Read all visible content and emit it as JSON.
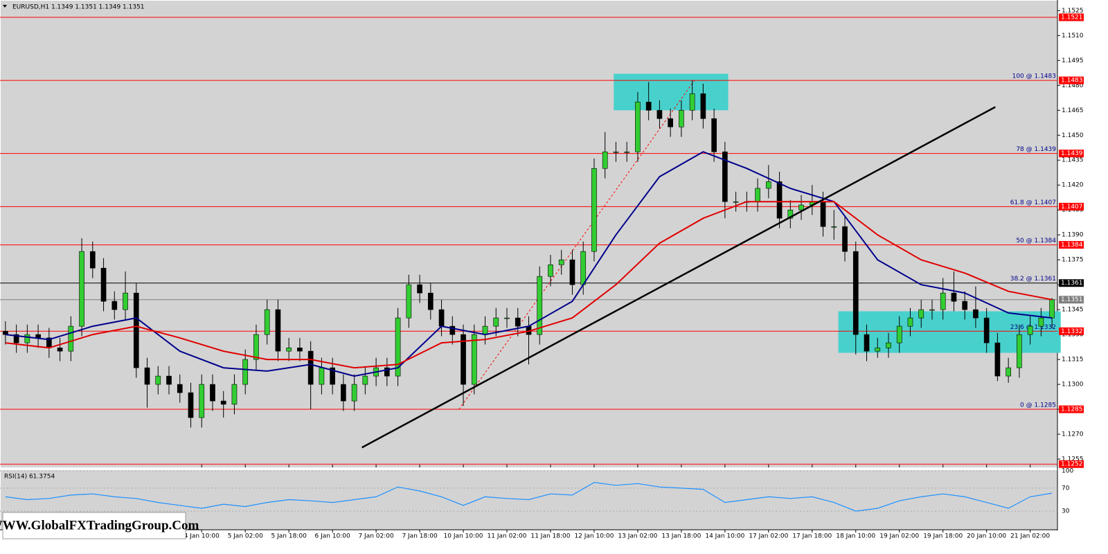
{
  "chart_data": {
    "type": "candlestick",
    "title": "EURUSD,H1  1.1349 1.1351 1.1349 1.1351",
    "watermark": "WWW.GlobalFXTradingGroup.Com",
    "colors": {
      "background": "#d3d3d3",
      "bull": "#32cd32",
      "bear": "#000000",
      "level": "#ff0000"
    },
    "open": [
      1.1332,
      1.133,
      1.1325,
      1.133,
      1.1328,
      1.1322,
      1.132,
      1.1335,
      1.138,
      1.137,
      1.135,
      1.1345,
      1.1355,
      1.131,
      1.13,
      1.1305,
      1.13,
      1.1295,
      1.128,
      1.13,
      1.129,
      1.1288,
      1.13,
      1.1315,
      1.133,
      1.1345,
      1.132,
      1.1322,
      1.132,
      1.13,
      1.131,
      1.13,
      1.129,
      1.13,
      1.1305,
      1.131,
      1.1305,
      1.134,
      1.136,
      1.1355,
      1.1345,
      1.1335,
      1.133,
      1.13,
      1.133,
      1.1335,
      1.134,
      1.134,
      1.1335,
      1.133,
      1.1365,
      1.1372,
      1.1375,
      1.136,
      1.138,
      1.143,
      1.144,
      1.144,
      1.144,
      1.147,
      1.1465,
      1.146,
      1.1455,
      1.1465,
      1.1475,
      1.146,
      1.144,
      1.141,
      1.141,
      1.141,
      1.1418,
      1.1422,
      1.14,
      1.1405,
      1.1408,
      1.141,
      1.1395,
      1.1395,
      1.138,
      1.133,
      1.132,
      1.1322,
      1.1325,
      1.1335,
      1.134,
      1.1345,
      1.1345,
      1.1355,
      1.135,
      1.1345,
      1.134,
      1.1325,
      1.1305,
      1.131,
      1.133,
      1.1335,
      1.134
    ],
    "high": [
      1.1338,
      1.1336,
      1.1336,
      1.1336,
      1.1334,
      1.1328,
      1.1341,
      1.1388,
      1.1386,
      1.1376,
      1.1356,
      1.1368,
      1.1361,
      1.1316,
      1.1311,
      1.1311,
      1.1306,
      1.1301,
      1.1306,
      1.1306,
      1.1296,
      1.1306,
      1.1321,
      1.1336,
      1.1351,
      1.1351,
      1.1328,
      1.1328,
      1.1326,
      1.1316,
      1.1316,
      1.1306,
      1.1306,
      1.1311,
      1.1316,
      1.1316,
      1.1346,
      1.1366,
      1.1366,
      1.1361,
      1.1351,
      1.1341,
      1.1336,
      1.1336,
      1.1341,
      1.1346,
      1.1346,
      1.1346,
      1.1341,
      1.1371,
      1.1378,
      1.1381,
      1.1381,
      1.1386,
      1.1436,
      1.1452,
      1.1446,
      1.1446,
      1.1476,
      1.1482,
      1.1471,
      1.1466,
      1.1471,
      1.1483,
      1.1481,
      1.1466,
      1.1446,
      1.1416,
      1.1416,
      1.1424,
      1.1432,
      1.1428,
      1.1411,
      1.1414,
      1.142,
      1.1416,
      1.1405,
      1.1401,
      1.1386,
      1.1336,
      1.1328,
      1.1331,
      1.1341,
      1.1346,
      1.1351,
      1.1351,
      1.1364,
      1.1368,
      1.1356,
      1.1359,
      1.1346,
      1.1331,
      1.1316,
      1.1336,
      1.1341,
      1.1346,
      1.1352
    ],
    "low": [
      1.1324,
      1.1319,
      1.1319,
      1.1322,
      1.1316,
      1.1314,
      1.1314,
      1.1329,
      1.1364,
      1.1344,
      1.1339,
      1.1339,
      1.1304,
      1.1286,
      1.1294,
      1.1294,
      1.1289,
      1.1274,
      1.1274,
      1.1284,
      1.128,
      1.1282,
      1.1294,
      1.1309,
      1.1324,
      1.1314,
      1.1314,
      1.1314,
      1.1285,
      1.1294,
      1.1294,
      1.1284,
      1.1284,
      1.1294,
      1.1299,
      1.1299,
      1.1299,
      1.1334,
      1.1349,
      1.1339,
      1.1329,
      1.1324,
      1.1287,
      1.1294,
      1.1324,
      1.1329,
      1.1334,
      1.1329,
      1.1312,
      1.1324,
      1.1359,
      1.1366,
      1.1354,
      1.1354,
      1.1374,
      1.1424,
      1.1434,
      1.1434,
      1.1434,
      1.1459,
      1.1454,
      1.1449,
      1.1449,
      1.1459,
      1.1454,
      1.1434,
      1.14,
      1.1404,
      1.1404,
      1.1404,
      1.1412,
      1.1394,
      1.1394,
      1.1399,
      1.1402,
      1.1389,
      1.1387,
      1.1374,
      1.1318,
      1.1314,
      1.1316,
      1.1316,
      1.1319,
      1.1329,
      1.1334,
      1.1339,
      1.1339,
      1.1344,
      1.1339,
      1.1334,
      1.1319,
      1.1302,
      1.1301,
      1.1304,
      1.1324,
      1.1329,
      1.1334
    ],
    "close": [
      1.133,
      1.1325,
      1.133,
      1.1328,
      1.1322,
      1.132,
      1.1335,
      1.138,
      1.137,
      1.135,
      1.1345,
      1.1355,
      1.131,
      1.13,
      1.1305,
      1.13,
      1.1295,
      1.128,
      1.13,
      1.129,
      1.1288,
      1.13,
      1.1315,
      1.133,
      1.1345,
      1.132,
      1.1322,
      1.132,
      1.13,
      1.131,
      1.13,
      1.129,
      1.13,
      1.1305,
      1.131,
      1.1305,
      1.134,
      1.136,
      1.1355,
      1.1345,
      1.1335,
      1.133,
      1.13,
      1.133,
      1.1335,
      1.134,
      1.134,
      1.1335,
      1.133,
      1.1365,
      1.1372,
      1.1375,
      1.136,
      1.138,
      1.143,
      1.144,
      1.144,
      1.144,
      1.147,
      1.1465,
      1.146,
      1.1455,
      1.1465,
      1.1475,
      1.146,
      1.144,
      1.141,
      1.141,
      1.141,
      1.1418,
      1.1422,
      1.14,
      1.1405,
      1.1408,
      1.141,
      1.1395,
      1.1395,
      1.138,
      1.133,
      1.132,
      1.1322,
      1.1325,
      1.1335,
      1.134,
      1.1345,
      1.1345,
      1.1355,
      1.135,
      1.1345,
      1.134,
      1.1325,
      1.1305,
      1.131,
      1.133,
      1.1335,
      1.134,
      1.1351
    ],
    "series": [
      {
        "color": "#00008b",
        "x": [
          0,
          4,
          8,
          12,
          16,
          20,
          24,
          28,
          32,
          36,
          40,
          44,
          48,
          52,
          56,
          60,
          64,
          68,
          72,
          76,
          80,
          84,
          88,
          92,
          96
        ],
        "values": [
          1.133,
          1.1327,
          1.1335,
          1.134,
          1.132,
          1.131,
          1.1308,
          1.1312,
          1.1305,
          1.131,
          1.1335,
          1.133,
          1.1335,
          1.135,
          1.139,
          1.1425,
          1.144,
          1.143,
          1.1418,
          1.141,
          1.1375,
          1.136,
          1.1355,
          1.1343,
          1.134
        ]
      },
      {
        "color": "#e00000",
        "x": [
          0,
          4,
          8,
          12,
          16,
          20,
          24,
          28,
          32,
          36,
          40,
          44,
          48,
          52,
          56,
          60,
          64,
          68,
          72,
          76,
          80,
          84,
          88,
          92,
          96
        ],
        "values": [
          1.1325,
          1.1322,
          1.133,
          1.1335,
          1.1328,
          1.132,
          1.1315,
          1.1315,
          1.131,
          1.1312,
          1.1325,
          1.1327,
          1.1332,
          1.134,
          1.136,
          1.1385,
          1.14,
          1.141,
          1.141,
          1.141,
          1.139,
          1.1375,
          1.1367,
          1.1356,
          1.1351
        ]
      }
    ],
    "xlim": [
      -0.5,
      96.5
    ],
    "ylim": [
      1.125,
      1.15314
    ],
    "xticks": [
      {
        "value": 18,
        "label": "4 Jan 10:00"
      },
      {
        "value": 22,
        "label": "5 Jan 02:00"
      },
      {
        "value": 26,
        "label": "5 Jan 18:00"
      },
      {
        "value": 30,
        "label": "6 Jan 10:00"
      },
      {
        "value": 34,
        "label": "7 Jan 02:00"
      },
      {
        "value": 38,
        "label": "7 Jan 18:00"
      },
      {
        "value": 42,
        "label": "10 Jan 10:00"
      },
      {
        "value": 46,
        "label": "11 Jan 02:00"
      },
      {
        "value": 50,
        "label": "11 Jan 18:00"
      },
      {
        "value": 54,
        "label": "12 Jan 10:00"
      },
      {
        "value": 58,
        "label": "13 Jan 02:00"
      },
      {
        "value": 62,
        "label": "13 Jan 18:00"
      },
      {
        "value": 66,
        "label": "14 Jan 10:00"
      },
      {
        "value": 70,
        "label": "17 Jan 02:00"
      },
      {
        "value": 74,
        "label": "17 Jan 18:00"
      },
      {
        "value": 78,
        "label": "18 Jan 10:00"
      },
      {
        "value": 82,
        "label": "19 Jan 02:00"
      },
      {
        "value": 86,
        "label": "19 Jan 18:00"
      },
      {
        "value": 90,
        "label": "20 Jan 10:00"
      },
      {
        "value": 94,
        "label": "21 Jan 02:00"
      }
    ],
    "yticks": [
      1.1525,
      {
        "value": 1.151,
        "label": "1.1510"
      },
      1.1495,
      {
        "value": 1.148,
        "label": "1.1480"
      },
      1.1465,
      {
        "value": 1.145,
        "label": "1.1450"
      },
      1.1435,
      {
        "value": 1.142,
        "label": "1.1420"
      },
      1.1405,
      {
        "value": 1.139,
        "label": "1.1390"
      },
      1.1375,
      {
        "value": 1.136,
        "label": "1.1360"
      },
      1.1345,
      {
        "value": 1.133,
        "label": "1.1330"
      },
      1.1315,
      {
        "value": 1.13,
        "label": "1.1300"
      },
      1.1285,
      {
        "value": 1.127,
        "label": "1.1270"
      },
      1.1255
    ],
    "levels": [
      {
        "value": 1.1521,
        "color": "#ff0000"
      },
      {
        "value": 1.1483,
        "color": "#ff0000"
      },
      {
        "value": 1.1439,
        "color": "#ff0000"
      },
      {
        "value": 1.1407,
        "color": "#ff0000"
      },
      {
        "value": 1.1384,
        "color": "#ff0000"
      },
      {
        "value": 1.1361,
        "color": "#000000"
      },
      {
        "value": 1.1351,
        "color": "#808080"
      },
      {
        "value": 1.1332,
        "color": "#ff0000"
      },
      {
        "value": 1.1285,
        "color": "#ff0000"
      },
      {
        "value": 1.1252,
        "color": "#ff0000"
      }
    ],
    "fib": [
      {
        "value": 1.1483,
        "label": "100 @ 1.1483"
      },
      {
        "value": 1.1439,
        "label": "78 @ 1.1439"
      },
      {
        "value": 1.1407,
        "label": "61.8 @ 1.1407"
      },
      {
        "value": 1.1384,
        "label": "50 @ 1.1384"
      },
      {
        "value": 1.1361,
        "label": "38.2 @ 1.1361"
      },
      {
        "value": 1.1332,
        "label": "23.6 @ 1.1332"
      },
      {
        "value": 1.1285,
        "label": "0 @ 1.1285"
      }
    ],
    "fib_line": {
      "x": [
        41.6,
        63.2
      ],
      "y": [
        1.1285,
        1.1483
      ]
    },
    "trendline": {
      "x": [
        32.7,
        90.8
      ],
      "y": [
        1.1262,
        1.1467
      ]
    },
    "zones": [
      {
        "color": "#48d1cc",
        "x": [
          55.8,
          66.3
        ],
        "y": [
          1.1487,
          1.1465
        ]
      },
      {
        "color": "#48d1cc",
        "x": [
          76.4,
          96.8
        ],
        "y": [
          1.1344,
          1.1319
        ]
      }
    ],
    "rsi": {
      "label": "RSI(14) 61.3754",
      "color": "#1e90ff",
      "x": [
        0,
        2,
        4,
        6,
        8,
        10,
        12,
        14,
        16,
        18,
        20,
        22,
        24,
        26,
        28,
        30,
        32,
        34,
        36,
        38,
        40,
        42,
        44,
        46,
        48,
        50,
        52,
        54,
        56,
        58,
        60,
        62,
        64,
        66,
        68,
        70,
        72,
        74,
        76,
        78,
        80,
        82,
        84,
        86,
        88,
        90,
        92,
        94,
        96
      ],
      "values": [
        55,
        50,
        52,
        58,
        60,
        55,
        52,
        45,
        40,
        35,
        42,
        38,
        45,
        50,
        48,
        45,
        50,
        55,
        72,
        65,
        55,
        40,
        55,
        52,
        50,
        60,
        58,
        80,
        75,
        78,
        72,
        70,
        68,
        45,
        50,
        55,
        52,
        55,
        45,
        30,
        35,
        48,
        55,
        60,
        55,
        45,
        35,
        55,
        61.3754
      ],
      "ylim": [
        0,
        100
      ],
      "yticks": [
        100,
        70,
        30
      ]
    }
  }
}
